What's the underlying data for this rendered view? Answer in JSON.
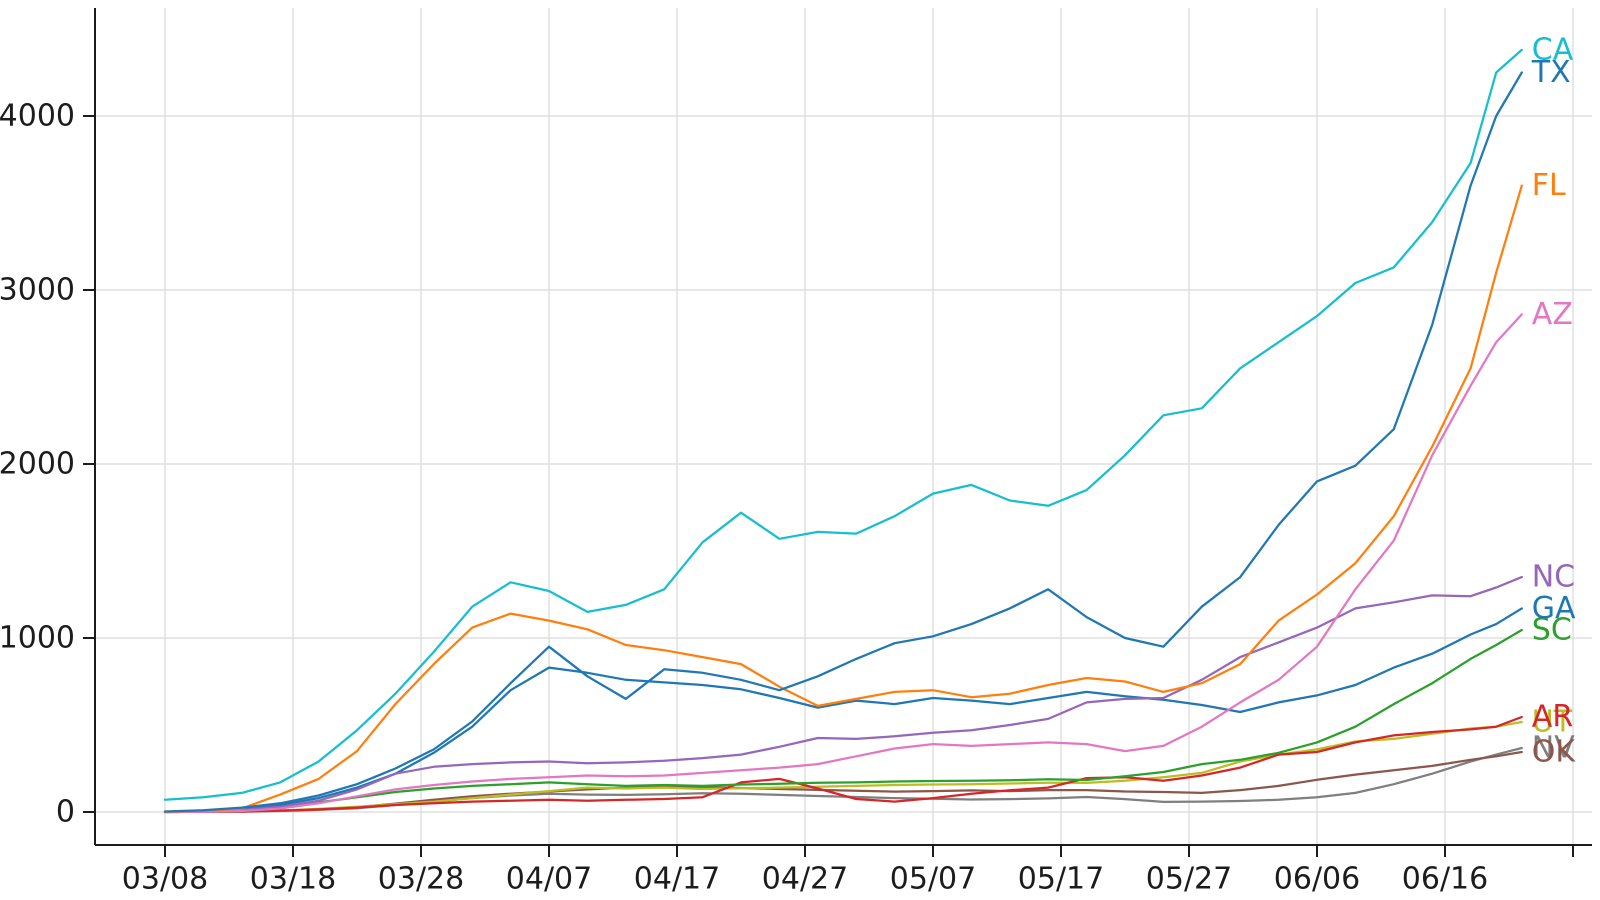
{
  "chart_data": {
    "type": "line",
    "title": "",
    "xlabel": "",
    "ylabel": "",
    "grid": true,
    "legend_position": "right-end-labels",
    "ylim": [
      0,
      4600
    ],
    "y_ticks": [
      {
        "v": 0,
        "label": "0"
      },
      {
        "v": 1000,
        "label": "1000"
      },
      {
        "v": 2000,
        "label": "2000"
      },
      {
        "v": 3000,
        "label": "3000"
      },
      {
        "v": 4000,
        "label": "4000"
      }
    ],
    "x_ticks": [
      {
        "day": 0,
        "label": "03/08"
      },
      {
        "day": 10,
        "label": "03/18"
      },
      {
        "day": 20,
        "label": "03/28"
      },
      {
        "day": 30,
        "label": "04/07"
      },
      {
        "day": 40,
        "label": "04/17"
      },
      {
        "day": 50,
        "label": "04/27"
      },
      {
        "day": 60,
        "label": "05/07"
      },
      {
        "day": 70,
        "label": "05/17"
      },
      {
        "day": 80,
        "label": "05/27"
      },
      {
        "day": 90,
        "label": "06/06"
      },
      {
        "day": 100,
        "label": "06/16"
      },
      {
        "day": 110,
        "label": ""
      }
    ],
    "dates": [
      "03/08",
      "03/11",
      "03/14",
      "03/17",
      "03/20",
      "03/23",
      "03/26",
      "03/29",
      "04/01",
      "04/04",
      "04/07",
      "04/10",
      "04/13",
      "04/16",
      "04/19",
      "04/22",
      "04/25",
      "04/28",
      "05/01",
      "05/04",
      "05/07",
      "05/10",
      "05/13",
      "05/16",
      "05/19",
      "05/22",
      "05/25",
      "05/28",
      "05/31",
      "06/03",
      "06/06",
      "06/09",
      "06/12",
      "06/15",
      "06/18",
      "06/20",
      "06/22"
    ],
    "days": [
      0,
      3,
      6,
      9,
      12,
      15,
      18,
      21,
      24,
      27,
      30,
      33,
      36,
      39,
      42,
      45,
      48,
      51,
      54,
      57,
      60,
      63,
      66,
      69,
      72,
      75,
      78,
      81,
      84,
      87,
      90,
      93,
      96,
      99,
      102,
      104,
      106
    ],
    "series": [
      {
        "name": "CA",
        "color": "#17becf",
        "values": [
          70,
          85,
          110,
          170,
          290,
          470,
          680,
          920,
          1180,
          1320,
          1270,
          1150,
          1190,
          1280,
          1550,
          1720,
          1570,
          1610,
          1600,
          1700,
          1830,
          1880,
          1790,
          1760,
          1850,
          2050,
          2280,
          2320,
          2550,
          2700,
          2850,
          3040,
          3130,
          3390,
          3730,
          4250,
          4380
        ]
      },
      {
        "name": "TX",
        "color": "#1f77b4",
        "values": [
          3,
          10,
          25,
          50,
          95,
          160,
          250,
          360,
          520,
          740,
          950,
          780,
          650,
          820,
          800,
          760,
          700,
          780,
          880,
          970,
          1010,
          1080,
          1170,
          1280,
          1120,
          1000,
          950,
          1180,
          1350,
          1650,
          1900,
          1990,
          2200,
          2800,
          3600,
          4000,
          4250
        ]
      },
      {
        "name": "FL",
        "color": "#ff7f0e",
        "values": [
          2,
          8,
          20,
          100,
          190,
          350,
          620,
          850,
          1060,
          1140,
          1100,
          1050,
          960,
          930,
          890,
          850,
          720,
          610,
          650,
          690,
          700,
          660,
          680,
          730,
          770,
          750,
          690,
          740,
          850,
          1100,
          1250,
          1430,
          1700,
          2100,
          2550,
          3100,
          3600
        ]
      },
      {
        "name": "AZ",
        "color": "#e377c2",
        "values": [
          0,
          2,
          6,
          20,
          50,
          90,
          130,
          155,
          175,
          190,
          200,
          210,
          205,
          210,
          225,
          240,
          255,
          275,
          320,
          365,
          390,
          380,
          390,
          400,
          390,
          350,
          380,
          490,
          630,
          760,
          950,
          1280,
          1560,
          2050,
          2450,
          2700,
          2860
        ]
      },
      {
        "name": "NC",
        "color": "#9467bd",
        "values": [
          1,
          5,
          12,
          30,
          65,
          130,
          220,
          260,
          275,
          285,
          290,
          280,
          285,
          295,
          310,
          330,
          375,
          425,
          420,
          435,
          455,
          470,
          500,
          535,
          630,
          650,
          655,
          760,
          890,
          975,
          1060,
          1170,
          1205,
          1245,
          1240,
          1290,
          1350
        ]
      },
      {
        "name": "GA",
        "color": "#1f77b4",
        "values": [
          1,
          6,
          16,
          40,
          80,
          140,
          220,
          340,
          490,
          700,
          830,
          800,
          760,
          745,
          730,
          705,
          655,
          600,
          640,
          620,
          655,
          640,
          620,
          655,
          690,
          665,
          645,
          615,
          575,
          630,
          670,
          730,
          830,
          910,
          1020,
          1080,
          1170
        ]
      },
      {
        "name": "SC",
        "color": "#2ca02c",
        "values": [
          1,
          4,
          10,
          25,
          55,
          85,
          115,
          135,
          150,
          160,
          170,
          160,
          150,
          155,
          150,
          158,
          162,
          168,
          170,
          175,
          178,
          180,
          182,
          188,
          184,
          205,
          230,
          275,
          300,
          340,
          400,
          490,
          620,
          740,
          880,
          960,
          1046
        ]
      },
      {
        "name": "AR",
        "color": "#d62728",
        "values": [
          0,
          1,
          3,
          8,
          15,
          25,
          40,
          50,
          60,
          65,
          70,
          65,
          70,
          75,
          85,
          170,
          190,
          135,
          75,
          60,
          80,
          105,
          125,
          140,
          195,
          200,
          180,
          210,
          255,
          330,
          345,
          400,
          440,
          460,
          475,
          490,
          546
        ]
      },
      {
        "name": "UT",
        "color": "#bcbd22",
        "values": [
          0,
          1,
          3,
          8,
          18,
          30,
          45,
          60,
          80,
          100,
          120,
          140,
          135,
          140,
          132,
          136,
          140,
          145,
          150,
          155,
          158,
          160,
          164,
          168,
          167,
          180,
          200,
          225,
          290,
          330,
          360,
          405,
          420,
          450,
          480,
          490,
          517
        ]
      },
      {
        "name": "NV",
        "color": "#7f7f7f",
        "values": [
          0,
          1,
          2,
          6,
          12,
          22,
          40,
          60,
          80,
          95,
          105,
          100,
          98,
          102,
          108,
          105,
          98,
          92,
          86,
          80,
          76,
          72,
          74,
          78,
          86,
          74,
          58,
          60,
          63,
          70,
          85,
          110,
          160,
          220,
          290,
          330,
          368
        ]
      },
      {
        "name": "OK",
        "color": "#8c564b",
        "values": [
          0,
          1,
          3,
          8,
          15,
          28,
          48,
          70,
          90,
          105,
          118,
          130,
          140,
          148,
          143,
          138,
          132,
          127,
          122,
          117,
          120,
          124,
          120,
          126,
          126,
          118,
          115,
          110,
          126,
          150,
          185,
          215,
          240,
          265,
          300,
          320,
          345
        ]
      }
    ]
  }
}
